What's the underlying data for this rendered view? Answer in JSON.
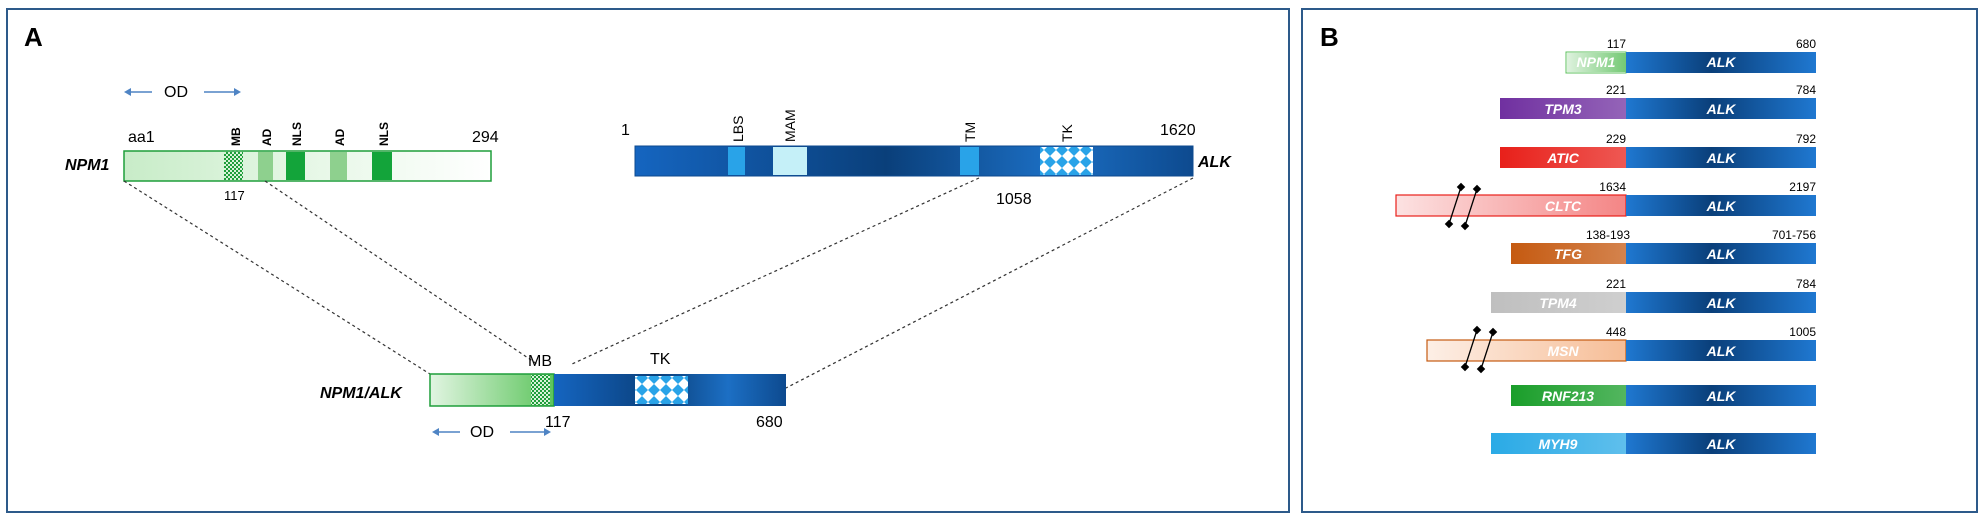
{
  "panel_a": {
    "letter": "A",
    "npm1": {
      "name": "NPM1",
      "start_label": "aa1",
      "end_label": "294",
      "break_label": "117",
      "od_label": "OD",
      "domains": [
        "MB",
        "AD",
        "NLS",
        "AD",
        "NLS"
      ]
    },
    "alk": {
      "name": "ALK",
      "start_label": "1",
      "end_label": "1620",
      "break_label": "1058",
      "domains": [
        "LBS",
        "MAM",
        "TM",
        "TK"
      ]
    },
    "fusion": {
      "name": "NPM1/ALK",
      "mb_label": "MB",
      "tk_label": "TK",
      "break_label": "117",
      "end_label": "680",
      "od_label": "OD"
    }
  },
  "panel_b": {
    "letter": "B",
    "alk_label": "ALK",
    "fusions": [
      {
        "partner": "NPM1",
        "left_num": "117",
        "right_num": "680",
        "color": "#5cc05c"
      },
      {
        "partner": "TPM3",
        "left_num": "221",
        "right_num": "784",
        "color": "#7030a0"
      },
      {
        "partner": "ATIC",
        "left_num": "229",
        "right_num": "792",
        "color": "#e8201a"
      },
      {
        "partner": "CLTC",
        "left_num": "1634",
        "right_num": "2197",
        "color": "#f27070"
      },
      {
        "partner": "TFG",
        "left_num": "138-193",
        "right_num": "701-756",
        "color": "#c55a11"
      },
      {
        "partner": "TPM4",
        "left_num": "221",
        "right_num": "784",
        "color": "#bfbfbf"
      },
      {
        "partner": "MSN",
        "left_num": "448",
        "right_num": "1005",
        "color": "#f4b183"
      },
      {
        "partner": "RNF213",
        "left_num": "",
        "right_num": "",
        "color": "#1a9e2a"
      },
      {
        "partner": "MYH9",
        "left_num": "",
        "right_num": "",
        "color": "#2aaae6"
      }
    ]
  }
}
